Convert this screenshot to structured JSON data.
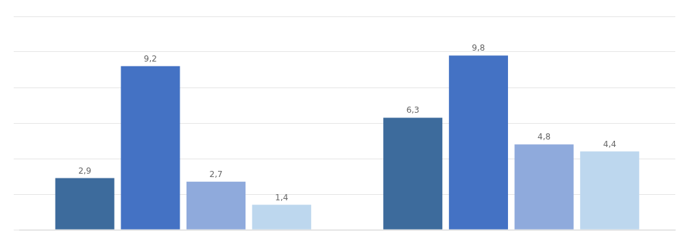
{
  "chart_data": {
    "type": "bar",
    "categories": [
      null,
      null
    ],
    "series": [
      {
        "color": "#3D6B9C",
        "values": [
          2.9,
          6.3
        ],
        "value_labels": [
          "2,9",
          "6,3"
        ]
      },
      {
        "color": "#4472C4",
        "values": [
          9.2,
          9.8
        ],
        "value_labels": [
          "9,2",
          "9,8"
        ]
      },
      {
        "color": "#8FAADC",
        "values": [
          2.7,
          4.8
        ],
        "value_labels": [
          "2,7",
          "4,8"
        ]
      },
      {
        "color": "#BDD7EE",
        "values": [
          1.4,
          4.4
        ],
        "value_labels": [
          "1,4",
          "4,4"
        ]
      }
    ],
    "ylim": [
      0,
      12
    ],
    "yticks": [
      0,
      2,
      4,
      6,
      8,
      10,
      12
    ],
    "grid": true,
    "data_labels": true,
    "tick_labels": false
  }
}
